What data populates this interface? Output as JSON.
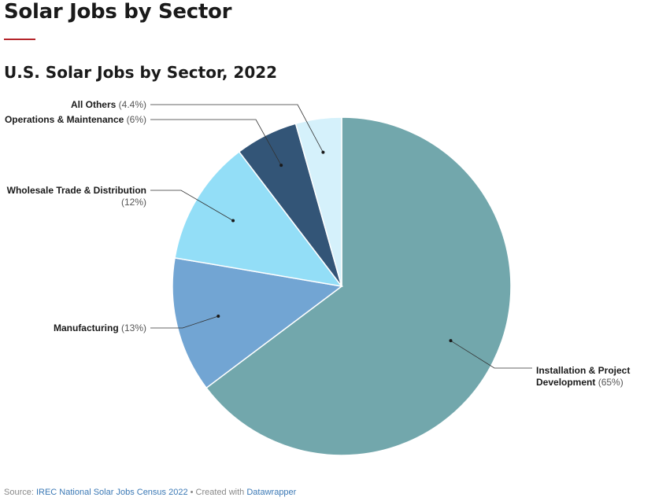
{
  "page": {
    "title": "Solar Jobs by Sector"
  },
  "chart_data": {
    "type": "pie",
    "title": "U.S. Solar Jobs by Sector, 2022",
    "slices": [
      {
        "name": "Installation & Project Development",
        "label_lines": [
          "Installation & Project",
          "Development"
        ],
        "value": 65,
        "pct_text": "(65%)",
        "color": "#72a7ac"
      },
      {
        "name": "Manufacturing",
        "label_lines": [
          "Manufacturing"
        ],
        "value": 13,
        "pct_text": "(13%)",
        "color": "#72a5d3"
      },
      {
        "name": "Wholesale Trade & Distribution",
        "label_lines": [
          "Wholesale Trade & Distribution"
        ],
        "value": 12,
        "pct_text": "(12%)",
        "color": "#93def7"
      },
      {
        "name": "Operations & Maintenance",
        "label_lines": [
          "Operations & Maintenance"
        ],
        "value": 6,
        "pct_text": "(6%)",
        "color": "#335577"
      },
      {
        "name": "All Others",
        "label_lines": [
          "All Others"
        ],
        "value": 4.4,
        "pct_text": "(4.4%)",
        "color": "#d5f1fb"
      }
    ]
  },
  "footer": {
    "source_prefix": "Source: ",
    "source_link": "IREC National Solar Jobs Census 2022",
    "separator": " • Created with ",
    "tool_link": "Datawrapper"
  }
}
